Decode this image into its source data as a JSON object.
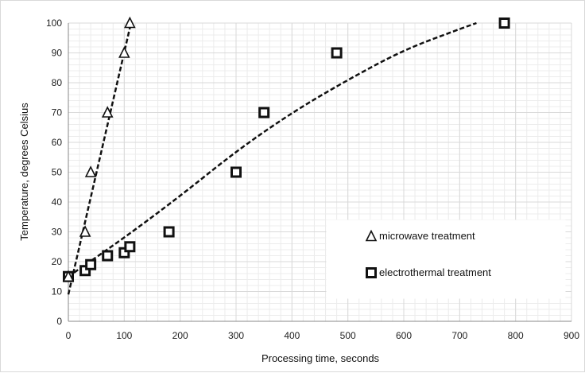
{
  "chart_data": {
    "type": "scatter",
    "xlabel": "Processing time, seconds",
    "ylabel": "Temperature, degrees Celsius",
    "xlim": [
      0,
      900
    ],
    "ylim": [
      0,
      100
    ],
    "x_ticks": [
      0,
      100,
      200,
      300,
      400,
      500,
      600,
      700,
      800,
      900
    ],
    "y_ticks": [
      0,
      10,
      20,
      30,
      40,
      50,
      60,
      70,
      80,
      90,
      100
    ],
    "grid": true,
    "legend_position": "bottom-right",
    "series": [
      {
        "name": "microwave treatment",
        "marker": "triangle",
        "points": [
          [
            0,
            15
          ],
          [
            30,
            30
          ],
          [
            40,
            50
          ],
          [
            70,
            70
          ],
          [
            100,
            90
          ],
          [
            110,
            100
          ]
        ],
        "trendline": {
          "type": "linear",
          "from": [
            0,
            9
          ],
          "to": [
            112,
            100
          ]
        }
      },
      {
        "name": "electrothermal treatment",
        "marker": "square",
        "points": [
          [
            0,
            15
          ],
          [
            30,
            17
          ],
          [
            40,
            19
          ],
          [
            70,
            22
          ],
          [
            100,
            23
          ],
          [
            110,
            25
          ],
          [
            180,
            30
          ],
          [
            300,
            50
          ],
          [
            350,
            70
          ],
          [
            480,
            90
          ],
          [
            780,
            100
          ]
        ],
        "trendline": {
          "type": "curve",
          "points": [
            [
              0,
              15
            ],
            [
              100,
              28
            ],
            [
              200,
              42
            ],
            [
              300,
              57
            ],
            [
              400,
              70
            ],
            [
              500,
              81
            ],
            [
              600,
              91
            ],
            [
              700,
              98
            ],
            [
              730,
              100
            ]
          ]
        }
      }
    ],
    "colors": {
      "marker": "#111111",
      "trend": "#111111",
      "grid": "#d9d9d9",
      "axis": "#888888"
    }
  }
}
